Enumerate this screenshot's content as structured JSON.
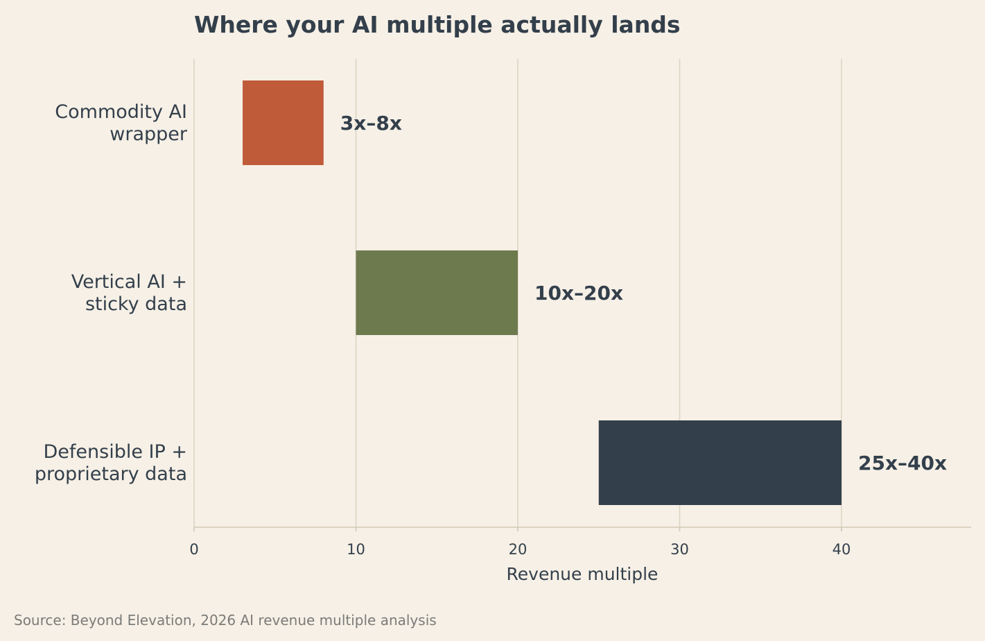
{
  "chart_data": {
    "type": "bar",
    "orientation": "horizontal-range",
    "title": "Where your AI multiple actually lands",
    "xlabel": "Revenue multiple",
    "ylabel": "",
    "xlim": [
      0,
      48
    ],
    "xticks": [
      "0",
      "10",
      "20",
      "30",
      "40"
    ],
    "grid": true,
    "categories": [
      [
        "Commodity AI",
        "wrapper"
      ],
      [
        "Vertical AI +",
        "sticky data"
      ],
      [
        "Defensible IP +",
        "proprietary data"
      ]
    ],
    "ranges": [
      {
        "low": 3,
        "high": 8,
        "label": "3x–8x",
        "color": "#bf5b39"
      },
      {
        "low": 10,
        "high": 20,
        "label": "10x–20x",
        "color": "#6d7a4e"
      },
      {
        "low": 25,
        "high": 40,
        "label": "25x–40x",
        "color": "#333f4b"
      }
    ],
    "source": "Source: Beyond Elevation, 2026 AI revenue multiple analysis"
  },
  "colors": {
    "background": "#f6f0e6",
    "text": "#333f4b",
    "grid": "#ddd4c4",
    "axis": "#d3c9b7",
    "source": "#7b7b78"
  }
}
